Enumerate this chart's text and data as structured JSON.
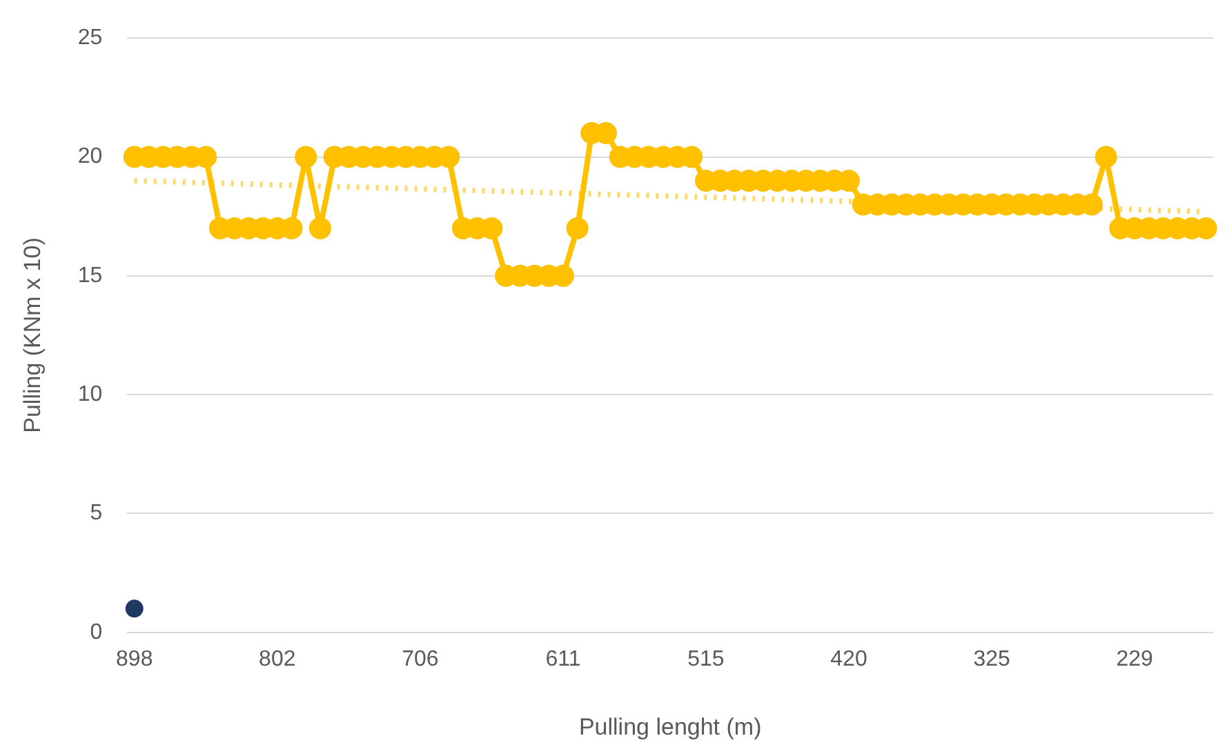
{
  "chart_data": {
    "type": "line",
    "xlabel": "Pulling lenght (m)",
    "ylabel": "Pulling (KNm x 10)",
    "categories": [
      "898",
      null,
      null,
      null,
      null,
      null,
      null,
      null,
      null,
      null,
      "802",
      null,
      null,
      null,
      null,
      null,
      null,
      null,
      null,
      null,
      "706",
      null,
      null,
      null,
      null,
      null,
      null,
      null,
      null,
      null,
      "611",
      null,
      null,
      null,
      null,
      null,
      null,
      null,
      null,
      null,
      "515",
      null,
      null,
      null,
      null,
      null,
      null,
      null,
      null,
      null,
      "420",
      null,
      null,
      null,
      null,
      null,
      null,
      null,
      null,
      null,
      "325",
      null,
      null,
      null,
      null,
      null,
      null,
      null,
      null,
      null,
      "229",
      null,
      null,
      null,
      null,
      null
    ],
    "series": [
      {
        "color": "#ffc000",
        "marker": "circle",
        "line_style": "solid",
        "values": [
          20,
          20,
          20,
          20,
          20,
          20,
          17,
          17,
          17,
          17,
          17,
          17,
          20,
          17,
          20,
          20,
          20,
          20,
          20,
          20,
          20,
          20,
          20,
          17,
          17,
          17,
          15,
          15,
          15,
          15,
          15,
          17,
          21,
          21,
          20,
          20,
          20,
          20,
          20,
          20,
          19,
          19,
          19,
          19,
          19,
          19,
          19,
          19,
          19,
          19,
          19,
          18,
          18,
          18,
          18,
          18,
          18,
          18,
          18,
          18,
          18,
          18,
          18,
          18,
          18,
          18,
          18,
          18,
          20,
          17,
          17,
          17,
          17,
          17,
          17,
          17
        ]
      },
      {
        "color": "#ffd966",
        "marker": "none",
        "line_style": "dotted",
        "values": [
          19,
          null,
          null,
          null,
          null,
          null,
          null,
          null,
          null,
          null,
          null,
          null,
          null,
          null,
          null,
          null,
          null,
          null,
          null,
          null,
          null,
          null,
          null,
          null,
          null,
          null,
          null,
          null,
          null,
          null,
          null,
          null,
          null,
          null,
          null,
          null,
          null,
          null,
          null,
          null,
          null,
          null,
          null,
          null,
          null,
          null,
          null,
          null,
          null,
          null,
          null,
          null,
          null,
          null,
          null,
          null,
          null,
          null,
          null,
          null,
          null,
          null,
          null,
          null,
          null,
          null,
          null,
          null,
          null,
          null,
          null,
          null,
          null,
          null,
          null,
          17.7
        ]
      },
      {
        "type": "scatter",
        "color": "#203864",
        "marker": "circle",
        "values": [
          1,
          null,
          null,
          null,
          null,
          null,
          null,
          null,
          null,
          null,
          null,
          null,
          null,
          null,
          null,
          null,
          null,
          null,
          null,
          null,
          null,
          null,
          null,
          null,
          null,
          null,
          null,
          null,
          null,
          null,
          null,
          null,
          null,
          null,
          null,
          null,
          null,
          null,
          null,
          null,
          null,
          null,
          null,
          null,
          null,
          null,
          null,
          null,
          null,
          null,
          null,
          null,
          null,
          null,
          null,
          null,
          null,
          null,
          null,
          null,
          null,
          null,
          null,
          null,
          null,
          null,
          null,
          null,
          null,
          null,
          null,
          null,
          null,
          null,
          null,
          null
        ]
      }
    ],
    "ylim": [
      0,
      25
    ],
    "yticks": [
      0,
      5,
      10,
      15,
      20,
      25
    ],
    "grid": "y",
    "legend": false
  }
}
